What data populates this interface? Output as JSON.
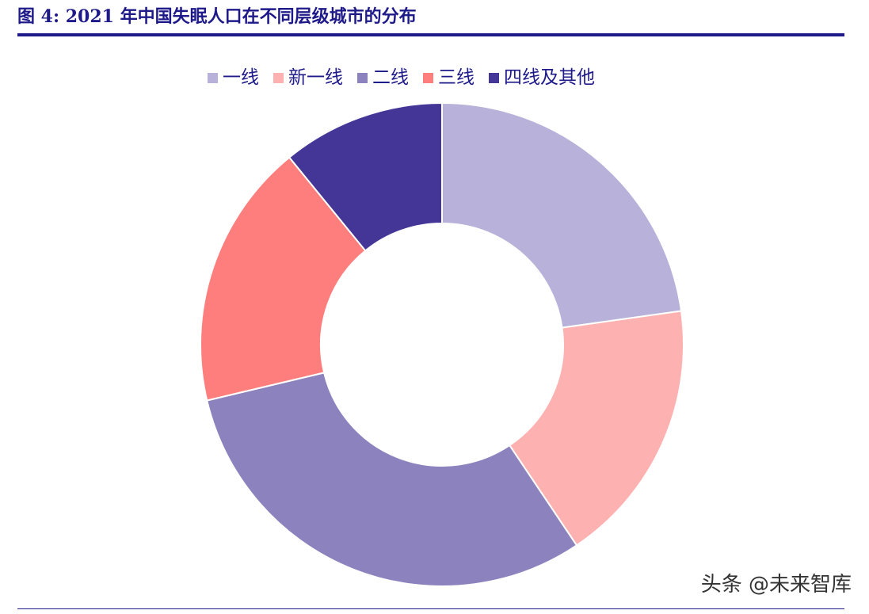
{
  "figure": {
    "title": "图 4:  2021 年中国失眠人口在不同层级城市的分布"
  },
  "watermark": "头条 @未来智库",
  "chart_data": {
    "type": "pie",
    "donut": true,
    "legend_position": "top",
    "categories": [
      "一线",
      "新一线",
      "二线",
      "三线",
      "四线及其他"
    ],
    "values": [
      23,
      18,
      31,
      18,
      11
    ],
    "colors": [
      "#b8b1d9",
      "#feb1b1",
      "#8b82be",
      "#fe7e7e",
      "#433696"
    ]
  }
}
